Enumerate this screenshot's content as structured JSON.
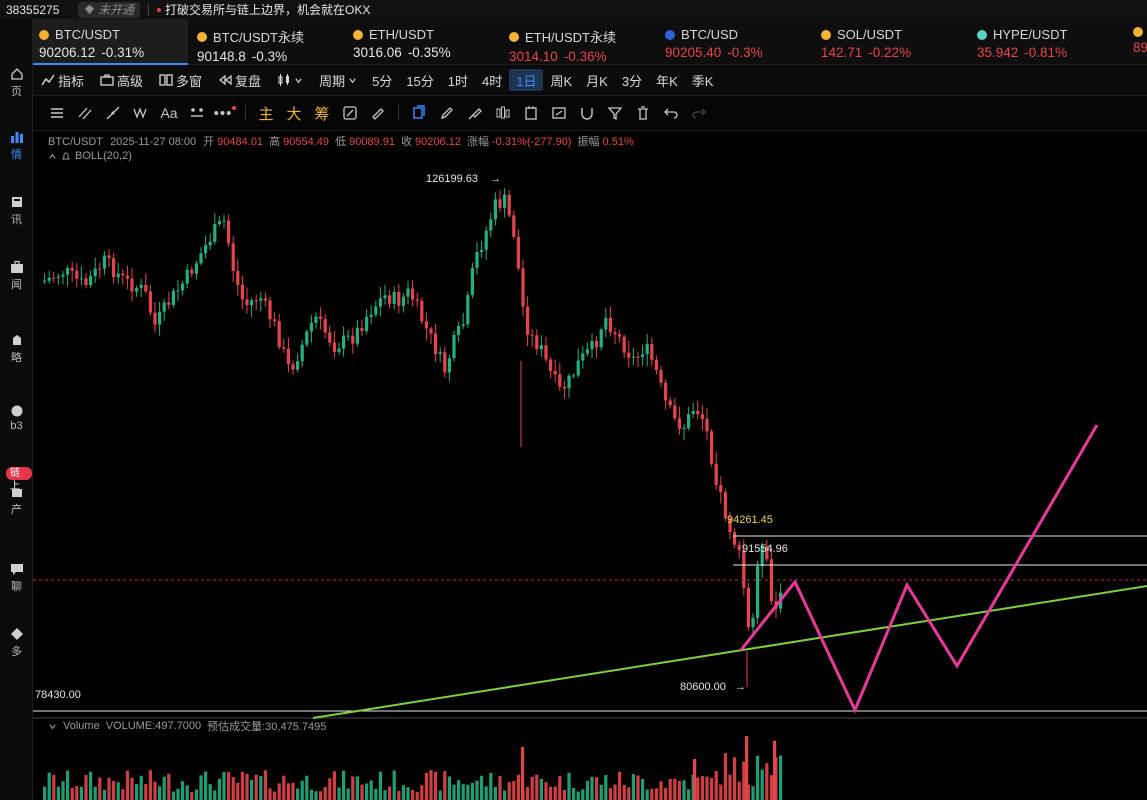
{
  "topbar": {
    "account_id": "38355275",
    "status_label": "未开通",
    "notice_text": "打破交易所与链上边界，机会就在OKX"
  },
  "left_nav": {
    "items": [
      {
        "label": "页",
        "icon": "home-icon"
      },
      {
        "label": "情",
        "icon": "chart-icon",
        "active": true
      },
      {
        "label": "讯",
        "icon": "news-icon"
      },
      {
        "label": "闻",
        "icon": "briefcase-icon"
      },
      {
        "label": "略",
        "icon": "strategy-icon"
      },
      {
        "label": "b3",
        "icon": "web3-icon"
      },
      {
        "label": "产",
        "icon": "asset-icon"
      },
      {
        "label": "聊",
        "icon": "chat-icon"
      },
      {
        "label": "多",
        "icon": "more-icon"
      }
    ],
    "badge": "链上"
  },
  "tickers": [
    {
      "name": "BTC/USDT",
      "price": "90206.12",
      "change": "-0.31%",
      "price_color": "light",
      "active": true
    },
    {
      "name": "BTC/USDT永续",
      "price": "90148.8",
      "change": "-0.3%",
      "price_color": "light"
    },
    {
      "name": "ETH/USDT",
      "price": "3016.06",
      "change": "-0.35%",
      "price_color": "light"
    },
    {
      "name": "ETH/USDT永续",
      "price": "3014.10",
      "change": "-0.36%",
      "price_color": "red"
    },
    {
      "name": "BTC/USD",
      "price": "90205.40",
      "change": "-0.3%",
      "price_color": "red"
    },
    {
      "name": "SOL/USDT",
      "price": "142.71",
      "change": "-0.22%",
      "price_color": "red"
    },
    {
      "name": "HYPE/USDT",
      "price": "35.942",
      "change": "-0.81%",
      "price_color": "red"
    },
    {
      "name": "",
      "price": "89",
      "change": "",
      "price_color": "red"
    }
  ],
  "toolbar": {
    "indicators": "指标",
    "advanced": "高级",
    "multi_window": "多窗",
    "replay": "复盘",
    "period": "周期",
    "periods": [
      "5分",
      "15分",
      "1时",
      "4时",
      "1日",
      "周K",
      "月K",
      "3分",
      "年K",
      "季K"
    ],
    "selected_period": "1日"
  },
  "drawing_tools": {
    "main_label": "主",
    "big_label": "大",
    "chips_label": "筹"
  },
  "chart_legend": {
    "symbol": "BTC/USDT",
    "datetime": "2025-11-27 08:00",
    "open_label": "开",
    "open": "90484.01",
    "high_label": "高",
    "high": "90554.49",
    "low_label": "低",
    "low": "90089.91",
    "close_label": "收",
    "close": "90206.12",
    "change_label": "涨幅",
    "change": "-0.31%(-277.90)",
    "amplitude_label": "振幅",
    "amplitude": "0.51%",
    "boll": "BOLL(20,2)"
  },
  "price_labels": {
    "high_marker": "126199.63",
    "level_a": "94261.45",
    "level_b": "91554.96",
    "low_marker": "80600.00",
    "axis_low": "78430.00"
  },
  "volume_legend": {
    "label": "Volume",
    "volume": "VOLUME:497.7000",
    "estimate": "预估成交量:30,475.7495"
  },
  "colors": {
    "up": "#21b07f",
    "down": "#e5454a",
    "accent": "#3b8cff",
    "trend_line": "#7cd13f",
    "projection": "#e8399b",
    "highlight_price": "#f2d44a"
  }
}
